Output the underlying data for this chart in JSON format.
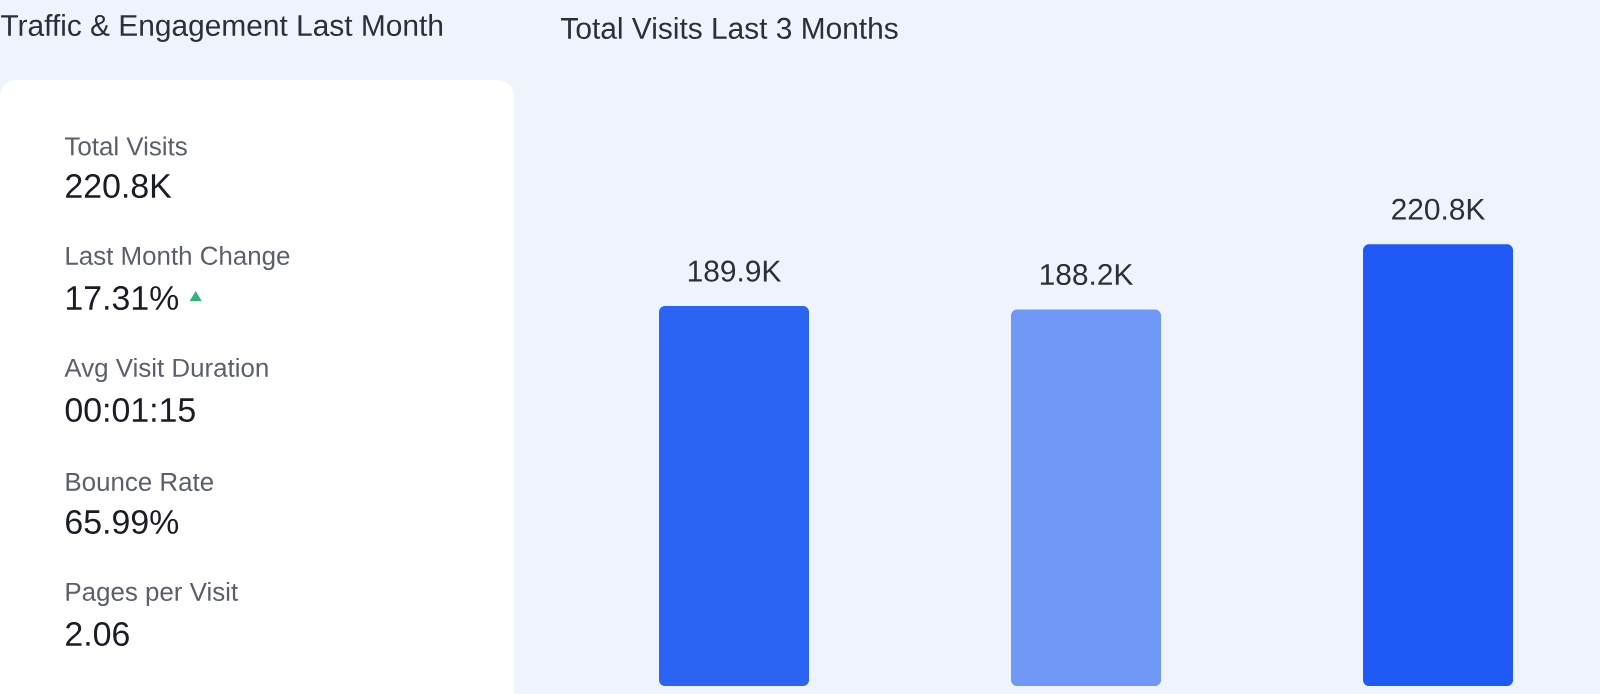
{
  "chart_data": [
    {
      "type": "other",
      "title": "Traffic & Engagement Last Month",
      "annotations": [
        "Total Visits",
        "220.8K",
        "Last Month Change",
        "17.31%",
        "Avg Visit Duration",
        "00:01:15",
        "Bounce Rate",
        "65.99%",
        "Pages per Visit",
        "2.06"
      ]
    },
    {
      "type": "bar",
      "title": "Total Visits Last 3 Months",
      "categories": [
        null,
        null,
        null
      ],
      "values": [
        189.9,
        188.2,
        220.8
      ],
      "colors": [
        "#2b64f2",
        "#7098f6",
        "#1f5af6"
      ],
      "value_labels": [
        "189.9K",
        "188.2K",
        "220.8K"
      ]
    }
  ]
}
